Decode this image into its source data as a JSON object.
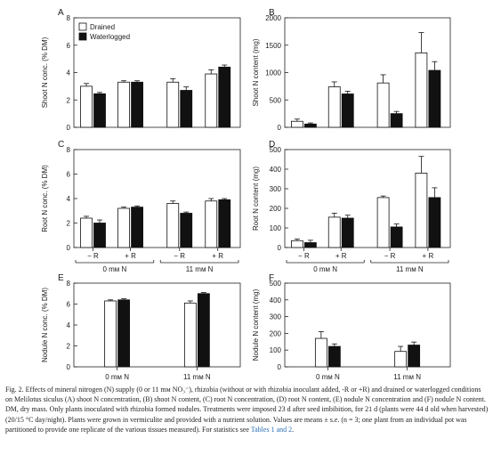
{
  "legend": {
    "items": [
      {
        "label": "Drained",
        "color": "#ffffff"
      },
      {
        "label": "Waterlogged",
        "color": "#111111"
      }
    ]
  },
  "group_labels_top": {
    "treatments": [
      "− R",
      "+ R",
      "− R",
      "+ R"
    ],
    "n_supply": [
      "0 mм N",
      "11 mм N"
    ]
  },
  "group_labels_bottom": {
    "n_supply": [
      "0 mм N",
      "11 mм N"
    ]
  },
  "caption": {
    "fig": "Fig. 2.",
    "text": "Effects of mineral nitrogen (N) supply (0 or 11 mм NO₃⁻), rhizobia (without or with rhizobia inoculant added, -R or +R) and drained or waterlogged conditions on Melilotus siculus (A) shoot N concentration, (B) shoot N content, (C) root N concentration, (D) root N content, (E) nodule N concentration and (F) nodule N content. DM, dry mass. Only plants inoculated with rhizobia formed nodules. Treatments were imposed 23 d after seed imbibition, for 21 d (plants were 44 d old when harvested) (20/15 °C day/night). Plants were grown in vermiculite and provided with a nutrient solution. Values are means ± s.e. (n = 3; one plant from an individual pot was partitioned to provide one replicate of the various tissues measured). For statistics see",
    "link": "Tables 1 and 2",
    "end": "."
  },
  "chart_data": [
    {
      "panel": "A",
      "type": "bar",
      "ylabel": "Shoot N conc. (% DM)",
      "ylim": [
        0,
        8
      ],
      "yticks": [
        0,
        2,
        4,
        6,
        8
      ],
      "categories": [
        "0 mм N − R",
        "0 mм N + R",
        "11 mм N − R",
        "11 mм N + R"
      ],
      "series": [
        {
          "name": "Drained",
          "values": [
            3.0,
            3.3,
            3.3,
            3.9
          ],
          "errors": [
            0.2,
            0.1,
            0.25,
            0.3
          ]
        },
        {
          "name": "Waterlogged",
          "values": [
            2.45,
            3.3,
            2.7,
            4.4
          ],
          "errors": [
            0.1,
            0.1,
            0.25,
            0.15
          ]
        }
      ]
    },
    {
      "panel": "B",
      "type": "bar",
      "ylabel": "Shoot N content (mg)",
      "ylim": [
        0,
        2000
      ],
      "yticks": [
        0,
        500,
        1000,
        1500,
        2000
      ],
      "categories": [
        "0 mм N − R",
        "0 mм N + R",
        "11 mм N − R",
        "11 mм N + R"
      ],
      "series": [
        {
          "name": "Drained",
          "values": [
            110,
            740,
            810,
            1360
          ],
          "errors": [
            40,
            90,
            150,
            370
          ]
        },
        {
          "name": "Waterlogged",
          "values": [
            60,
            610,
            250,
            1040
          ],
          "errors": [
            20,
            50,
            40,
            160
          ]
        }
      ]
    },
    {
      "panel": "C",
      "type": "bar",
      "ylabel": "Root N conc. (% DM)",
      "ylim": [
        0,
        8
      ],
      "yticks": [
        0,
        2,
        4,
        6,
        8
      ],
      "categories": [
        "0 mм N − R",
        "0 mм N + R",
        "11 mм N − R",
        "11 mм N + R"
      ],
      "series": [
        {
          "name": "Drained",
          "values": [
            2.4,
            3.2,
            3.6,
            3.8
          ],
          "errors": [
            0.15,
            0.1,
            0.2,
            0.2
          ]
        },
        {
          "name": "Waterlogged",
          "values": [
            2.0,
            3.3,
            2.8,
            3.9
          ],
          "errors": [
            0.25,
            0.1,
            0.1,
            0.1
          ]
        }
      ]
    },
    {
      "panel": "D",
      "type": "bar",
      "ylabel": "Root N content (mg)",
      "ylim": [
        0,
        500
      ],
      "yticks": [
        0,
        100,
        200,
        300,
        400,
        500
      ],
      "categories": [
        "0 mм N − R",
        "0 mм N + R",
        "11 mм N − R",
        "11 mм N + R"
      ],
      "series": [
        {
          "name": "Drained",
          "values": [
            35,
            155,
            255,
            380
          ],
          "errors": [
            8,
            20,
            8,
            85
          ]
        },
        {
          "name": "Waterlogged",
          "values": [
            25,
            150,
            105,
            255
          ],
          "errors": [
            12,
            15,
            15,
            50
          ]
        }
      ]
    },
    {
      "panel": "E",
      "type": "bar",
      "ylabel": "Nodule N conc. (% DM)",
      "ylim": [
        0,
        8
      ],
      "yticks": [
        0,
        2,
        4,
        6,
        8
      ],
      "categories": [
        "0 mм N",
        "11 mм N"
      ],
      "series": [
        {
          "name": "Drained",
          "values": [
            6.3,
            6.1
          ],
          "errors": [
            0.1,
            0.2
          ]
        },
        {
          "name": "Waterlogged",
          "values": [
            6.4,
            7.0
          ],
          "errors": [
            0.1,
            0.1
          ]
        }
      ]
    },
    {
      "panel": "F",
      "type": "bar",
      "ylabel": "Nodule N content (mg)",
      "ylim": [
        0,
        500
      ],
      "yticks": [
        0,
        100,
        200,
        300,
        400,
        500
      ],
      "categories": [
        "0 mм N",
        "11 mм N"
      ],
      "series": [
        {
          "name": "Drained",
          "values": [
            170,
            92
          ],
          "errors": [
            40,
            30
          ]
        },
        {
          "name": "Waterlogged",
          "values": [
            122,
            130
          ],
          "errors": [
            15,
            18
          ]
        }
      ]
    }
  ]
}
